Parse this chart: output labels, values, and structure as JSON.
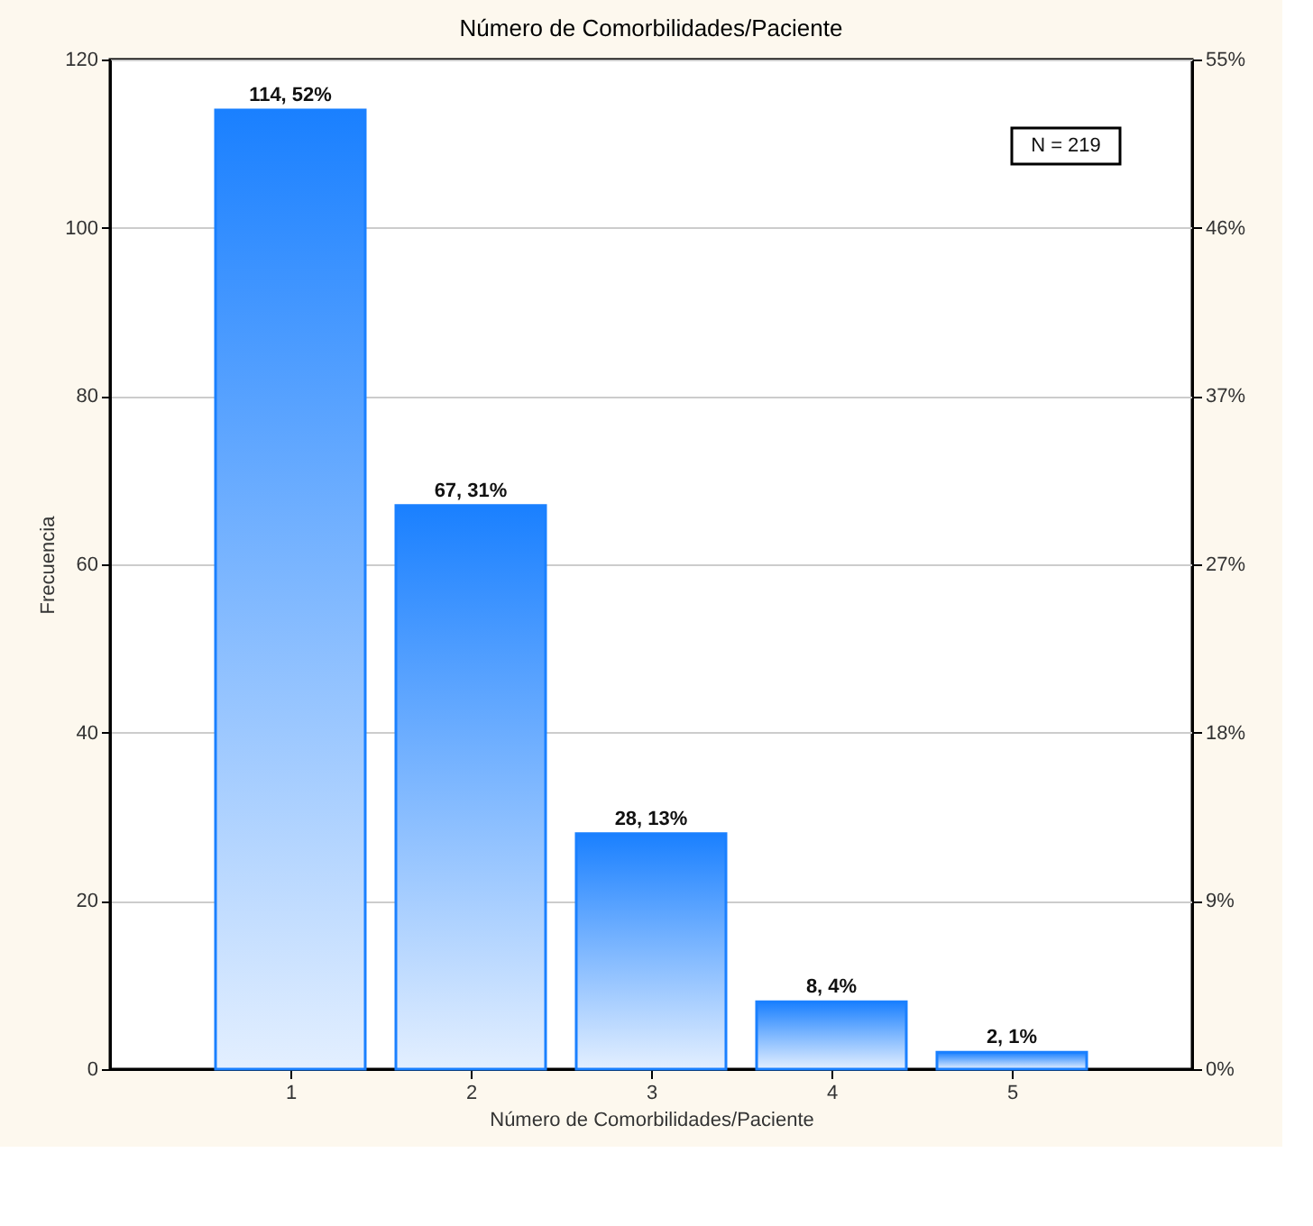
{
  "chart_data": {
    "type": "bar",
    "title": "Número de Comorbilidades/Paciente",
    "xlabel": "Número de Comorbilidades/Paciente",
    "ylabel": "Frecuencia",
    "x": [
      1,
      2,
      3,
      4,
      5
    ],
    "xlim": [
      0,
      6
    ],
    "xticks": [
      1,
      2,
      3,
      4,
      5
    ],
    "values": [
      114,
      67,
      28,
      8,
      2
    ],
    "color": "#1a80ff",
    "value_labels": [
      "114, 52%",
      "67, 31%",
      "28, 13%",
      "8, 4%",
      "2, 1%"
    ],
    "ylim": [
      0,
      120
    ],
    "yticks": [
      0,
      20,
      40,
      60,
      80,
      100,
      120
    ],
    "y2lim": [
      0,
      54.79
    ],
    "y2ticks": [
      {
        "value": 0,
        "label": "0%"
      },
      {
        "value": 9.13,
        "label": "9%"
      },
      {
        "value": 18.26,
        "label": "18%"
      },
      {
        "value": 27.4,
        "label": "27%"
      },
      {
        "value": 36.53,
        "label": "37%"
      },
      {
        "value": 45.66,
        "label": "46%"
      },
      {
        "value": 54.79,
        "label": "55%"
      }
    ],
    "grid": "y",
    "annotations": [
      "N = 219"
    ]
  }
}
